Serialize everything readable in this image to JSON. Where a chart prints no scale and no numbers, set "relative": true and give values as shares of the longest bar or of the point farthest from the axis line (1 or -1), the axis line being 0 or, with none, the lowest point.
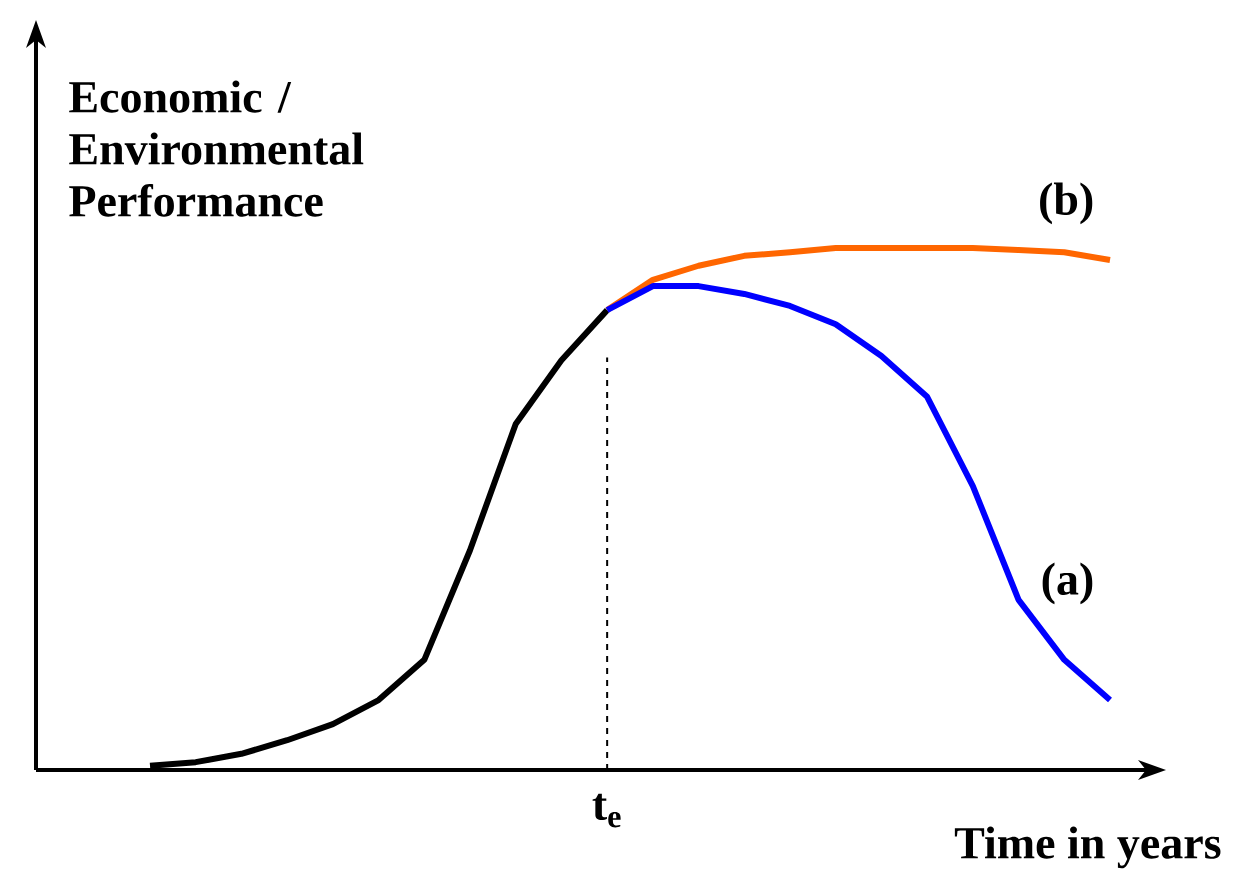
{
  "chart_data": {
    "type": "line",
    "relative": true,
    "annotations": [
      "t$_{e}$"
    ],
    "xlabel": "Time in years",
    "ylabel": "Economic / Environmental Performance",
    "categories": [
      null,
      null,
      null,
      null,
      null,
      null,
      null,
      null,
      null,
      null,
      null,
      null,
      null,
      null,
      null,
      null,
      null,
      null,
      null,
      null,
      null,
      null
    ],
    "series": [
      {
        "color": "#000000",
        "values": [
          0.008,
          0.015,
          0.031,
          0.057,
          0.088,
          0.134,
          0.211,
          0.421,
          0.663,
          0.785,
          0.881,
          null,
          null,
          null,
          null,
          null,
          null,
          null,
          null,
          null,
          null,
          null
        ]
      },
      {
        "name": "(b)",
        "color": "#ff6600",
        "values": [
          null,
          null,
          null,
          null,
          null,
          null,
          null,
          null,
          null,
          null,
          0.881,
          0.939,
          0.966,
          0.985,
          0.992,
          1.0,
          1.0,
          1.0,
          1.0,
          0.996,
          0.992,
          0.977
        ]
      },
      {
        "name": "(a)",
        "color": "#0000ff",
        "values": [
          null,
          null,
          null,
          null,
          null,
          null,
          null,
          null,
          null,
          null,
          0.881,
          0.927,
          0.927,
          0.912,
          0.889,
          0.854,
          0.793,
          0.715,
          0.544,
          0.326,
          0.211,
          0.134
        ]
      }
    ]
  }
}
